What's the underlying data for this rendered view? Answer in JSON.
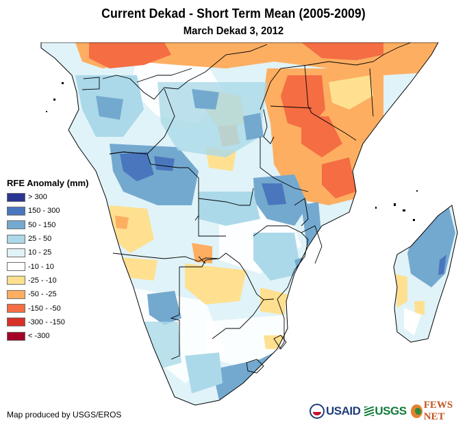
{
  "header": {
    "title": "Current Dekad - Short Term Mean (2005-2009)",
    "subtitle": "March Dekad 3, 2012"
  },
  "legend": {
    "title": "RFE Anomaly (mm)",
    "items": [
      {
        "label": "> 300",
        "color": "#2c3593"
      },
      {
        "label": "150 - 300",
        "color": "#4a76bd"
      },
      {
        "label": "50 - 150",
        "color": "#74a9cf"
      },
      {
        "label": "25 - 50",
        "color": "#abd9e9"
      },
      {
        "label": "10 - 25",
        "color": "#e0f3f8"
      },
      {
        "label": "-10 - 10",
        "color": "#ffffff"
      },
      {
        "label": "-25 - -10",
        "color": "#fee090"
      },
      {
        "label": "-50 - -25",
        "color": "#fdae61"
      },
      {
        "label": "-150 - -50",
        "color": "#f46d43"
      },
      {
        "label": "-300 - -150",
        "color": "#d73027"
      },
      {
        "label": "< -300",
        "color": "#a50026"
      }
    ]
  },
  "footer": {
    "credit": "Map produced by USGS/EROS",
    "logos": {
      "usaid": "USAID",
      "usgs": "USGS",
      "fews": "FEWS NET"
    }
  }
}
